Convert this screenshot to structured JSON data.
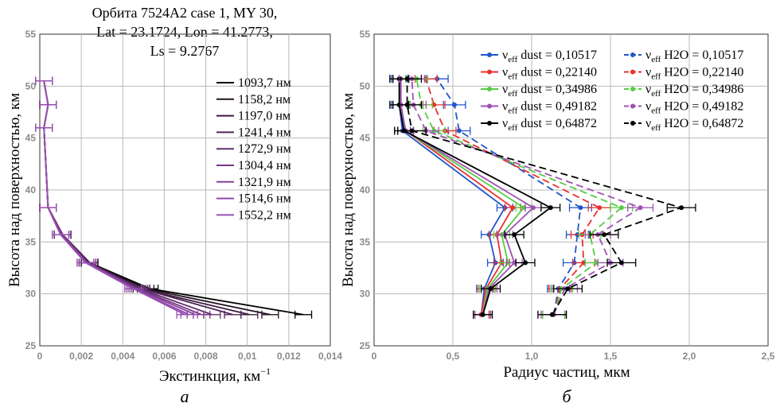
{
  "panel_labels": [
    "а",
    "б"
  ],
  "chart_data": [
    {
      "type": "line",
      "title_lines": [
        "Орбита 7524A2 case 1, MY 30,",
        "Lat = 23.1724, Lon = 41.2773,",
        "Ls = 9.2767"
      ],
      "xlabel_main": "Экстинкция, км",
      "xlabel_sup": "−1",
      "ylabel": "Высота над поверхностью, км",
      "xlim": [
        0,
        0.014
      ],
      "ylim": [
        25,
        55
      ],
      "xticks": [
        "0",
        "0,002",
        "0,004",
        "0,006",
        "0,008",
        "0,01",
        "0,012",
        "0,014"
      ],
      "yticks": [
        "25",
        "30",
        "35",
        "40",
        "45",
        "50",
        "55"
      ],
      "legend_position": "right",
      "heights": [
        28.0,
        30.5,
        33.0,
        35.7,
        38.3,
        46.0,
        48.2,
        50.5
      ],
      "series": [
        {
          "name": "1093,7 нм",
          "color": "#000000",
          "values": [
            0.0127,
            0.0053,
            0.0024,
            0.0011,
            0.0004,
            0.0002,
            0.0004,
            0.0002
          ],
          "err": 0.0004
        },
        {
          "name": "1158,2 нм",
          "color": "#241024",
          "values": [
            0.0111,
            0.0051,
            0.0024,
            0.0011,
            0.0004,
            0.0002,
            0.0004,
            0.0002
          ],
          "err": 0.0004
        },
        {
          "name": "1197,0 нм",
          "color": "#3a1a3e",
          "values": [
            0.0101,
            0.0049,
            0.0024,
            0.0011,
            0.0004,
            0.0002,
            0.0004,
            0.0002
          ],
          "err": 0.0004
        },
        {
          "name": "1241,4 нм",
          "color": "#4f2558",
          "values": [
            0.0093,
            0.0049,
            0.0023,
            0.0011,
            0.0004,
            0.0002,
            0.0004,
            0.0002
          ],
          "err": 0.0004
        },
        {
          "name": "1272,9 нм",
          "color": "#612e6e",
          "values": [
            0.0083,
            0.0048,
            0.0023,
            0.0011,
            0.0004,
            0.0002,
            0.0004,
            0.0002
          ],
          "err": 0.0004
        },
        {
          "name": "1304,4 нм",
          "color": "#733784",
          "values": [
            0.0078,
            0.0047,
            0.0023,
            0.0011,
            0.0004,
            0.0002,
            0.0004,
            0.0002
          ],
          "err": 0.0004
        },
        {
          "name": "1321,9 нм",
          "color": "#85409a",
          "values": [
            0.0075,
            0.0046,
            0.0023,
            0.001,
            0.0004,
            0.0002,
            0.0004,
            0.0002
          ],
          "err": 0.0004
        },
        {
          "name": "1514,6 нм",
          "color": "#9148a8",
          "values": [
            0.0072,
            0.0045,
            0.0022,
            0.001,
            0.0004,
            0.0002,
            0.0004,
            0.0002
          ],
          "err": 0.0004
        },
        {
          "name": "1552,2 нм",
          "color": "#9a50b2",
          "values": [
            0.007,
            0.0045,
            0.0022,
            0.001,
            0.0004,
            0.0002,
            0.0004,
            0.0002
          ],
          "err": 0.0004
        }
      ]
    },
    {
      "type": "line",
      "xlabel": "Радиус частиц, мкм",
      "ylabel": "Высота над поверхностью, км",
      "xlim": [
        0,
        2.5
      ],
      "ylim": [
        25,
        55
      ],
      "xticks": [
        "0",
        "0,5",
        "1,0",
        "1,5",
        "2,0",
        "2,5"
      ],
      "yticks": [
        "25",
        "30",
        "35",
        "40",
        "45",
        "50",
        "55"
      ],
      "legend_position": "top-right",
      "heights": [
        28.0,
        30.5,
        33.0,
        35.7,
        38.3,
        45.7,
        48.2,
        50.7
      ],
      "series": [
        {
          "name": "dust = 0,10517",
          "color": "#2255cc",
          "dashed": false,
          "values": [
            0.68,
            0.7,
            0.77,
            0.73,
            0.83,
            0.18,
            0.16,
            0.16
          ],
          "err": 0.05
        },
        {
          "name": "dust = 0,22140",
          "color": "#e83030",
          "dashed": false,
          "values": [
            0.68,
            0.71,
            0.81,
            0.78,
            0.88,
            0.2,
            0.17,
            0.17
          ],
          "err": 0.05
        },
        {
          "name": "dust = 0,34986",
          "color": "#55cc44",
          "dashed": false,
          "values": [
            0.69,
            0.72,
            0.85,
            0.81,
            0.95,
            0.2,
            0.17,
            0.17
          ],
          "err": 0.05
        },
        {
          "name": "dust = 0,49182",
          "color": "#a050b4",
          "dashed": false,
          "values": [
            0.69,
            0.73,
            0.89,
            0.83,
            1.01,
            0.2,
            0.17,
            0.17
          ],
          "err": 0.05
        },
        {
          "name": "dust = 0,64872",
          "color": "#000000",
          "dashed": false,
          "values": [
            0.69,
            0.74,
            0.96,
            0.89,
            1.12,
            0.19,
            0.16,
            0.16
          ],
          "err": 0.06
        },
        {
          "name": "H2O = 0,10517",
          "color": "#2255cc",
          "dashed": true,
          "values": [
            1.14,
            1.17,
            1.27,
            1.29,
            1.31,
            0.54,
            0.51,
            0.4
          ],
          "err": 0.07
        },
        {
          "name": "H2O = 0,22140",
          "color": "#e83030",
          "dashed": true,
          "values": [
            1.14,
            1.18,
            1.33,
            1.32,
            1.43,
            0.45,
            0.38,
            0.33
          ],
          "err": 0.07
        },
        {
          "name": "H2O = 0,34986",
          "color": "#55cc44",
          "dashed": true,
          "values": [
            1.14,
            1.19,
            1.41,
            1.37,
            1.57,
            0.38,
            0.3,
            0.27
          ],
          "err": 0.07
        },
        {
          "name": "H2O = 0,49182",
          "color": "#a050b4",
          "dashed": true,
          "values": [
            1.14,
            1.21,
            1.5,
            1.42,
            1.69,
            0.33,
            0.25,
            0.24
          ],
          "err": 0.08
        },
        {
          "name": "H2O = 0,64872",
          "color": "#000000",
          "dashed": true,
          "values": [
            1.13,
            1.23,
            1.57,
            1.46,
            1.95,
            0.24,
            0.21,
            0.21
          ],
          "err": 0.09
        }
      ]
    }
  ]
}
